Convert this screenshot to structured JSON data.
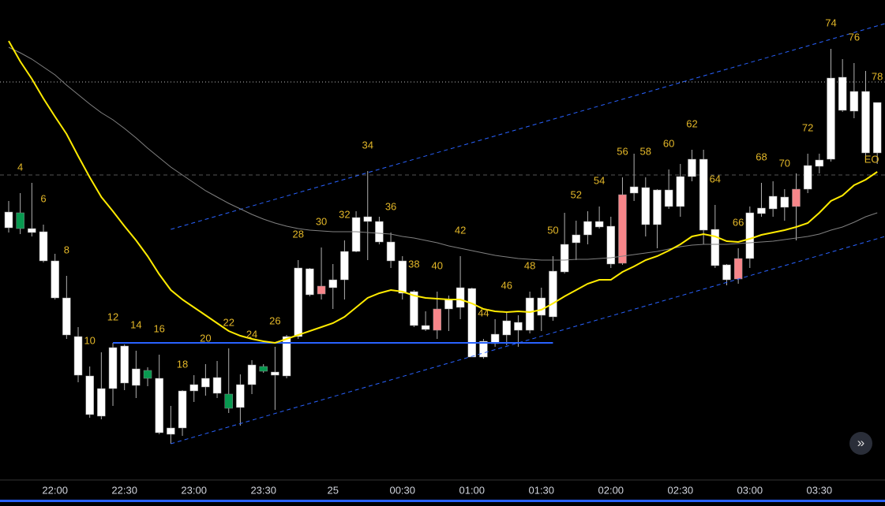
{
  "chart_data": {
    "type": "candlestick",
    "xlim": [
      -0.75,
      75.67
    ],
    "ylim": [
      0,
      600
    ],
    "categories": [
      null,
      null,
      null,
      null,
      "22:00",
      null,
      null,
      null,
      null,
      null,
      "22:30",
      null,
      null,
      null,
      null,
      null,
      "23:00",
      null,
      null,
      null,
      null,
      null,
      "23:30",
      null,
      null,
      null,
      null,
      null,
      "25",
      null,
      null,
      null,
      null,
      null,
      "00:30",
      null,
      null,
      null,
      null,
      null,
      "01:00",
      null,
      null,
      null,
      null,
      null,
      "01:30",
      null,
      null,
      null,
      null,
      null,
      "02:00",
      null,
      null,
      null,
      null,
      null,
      "02:30",
      null,
      null,
      null,
      null,
      null,
      "03:00",
      null,
      null,
      null,
      null,
      null,
      "03:30",
      null,
      null,
      null,
      null,
      null
    ],
    "open": [
      311,
      330,
      305,
      269,
      222,
      175,
      124,
      74,
      72,
      107,
      114,
      111,
      130,
      51,
      49,
      57,
      104,
      109,
      101,
      100,
      83,
      112,
      135,
      124,
      123,
      173,
      226,
      237,
      235,
      245,
      281,
      319,
      293,
      269,
      228,
      187,
      182,
      208,
      208,
      210,
      147,
      147,
      164,
      175,
      181,
      181,
      200,
      198,
      255,
      292,
      302,
      312,
      265,
      353,
      355,
      315,
      315,
      338,
      338,
      376,
      308,
      263,
      245,
      272,
      272,
      329,
      335,
      337,
      360,
      360,
      389,
      398,
      460,
      459,
      406,
      406
    ],
    "high": [
      345,
      355,
      368,
      315,
      278,
      250,
      185,
      135,
      153,
      165,
      163,
      155,
      134,
      150,
      85,
      105,
      124,
      138,
      142,
      158,
      125,
      143,
      138,
      160,
      175,
      270,
      260,
      286,
      265,
      295,
      332,
      383,
      325,
      305,
      275,
      232,
      205,
      230,
      225,
      275,
      235,
      170,
      195,
      205,
      200,
      230,
      235,
      275,
      330,
      320,
      332,
      338,
      325,
      375,
      405,
      375,
      360,
      385,
      392,
      410,
      410,
      340,
      265,
      285,
      338,
      368,
      370,
      360,
      380,
      405,
      405,
      538,
      525,
      520,
      510,
      470
    ],
    "low": [
      305,
      303,
      300,
      267,
      220,
      170,
      115,
      70,
      68,
      85,
      105,
      95,
      110,
      49,
      37,
      47,
      90,
      98,
      95,
      76,
      60,
      100,
      127,
      80,
      120,
      170,
      224,
      220,
      208,
      220,
      280,
      270,
      290,
      260,
      220,
      185,
      180,
      170,
      180,
      195,
      147,
      145,
      160,
      162,
      160,
      177,
      180,
      193,
      253,
      270,
      290,
      310,
      260,
      264,
      345,
      300,
      285,
      335,
      325,
      370,
      290,
      260,
      238,
      240,
      260,
      325,
      325,
      320,
      295,
      355,
      380,
      395,
      458,
      450,
      400,
      392
    ],
    "close": [
      331,
      310,
      310,
      306,
      269,
      222,
      173,
      123,
      107,
      159,
      161,
      132,
      120,
      120,
      57,
      104,
      112,
      120,
      121,
      82,
      112,
      137,
      129,
      128,
      173,
      260,
      259,
      227,
      245,
      281,
      324,
      325,
      319,
      293,
      269,
      230,
      187,
      181,
      220,
      235,
      234,
      167,
      176,
      193,
      191,
      222,
      222,
      256,
      290,
      302,
      319,
      319,
      313,
      266,
      363,
      362,
      359,
      359,
      376,
      398,
      398,
      309,
      264,
      246,
      330,
      336,
      351,
      350,
      338,
      390,
      397,
      501,
      502,
      484,
      484,
      470
    ],
    "colors": [
      "#ffffff",
      "#089950",
      "#ffffff",
      "#ffffff",
      "#ffffff",
      "#ffffff",
      "#ffffff",
      "#ffffff",
      "#ffffff",
      "#ffffff",
      "#ffffff",
      "#ffffff",
      "#089950",
      "#ffffff",
      "#ffffff",
      "#ffffff",
      "#ffffff",
      "#ffffff",
      "#ffffff",
      "#089950",
      "#ffffff",
      "#ffffff",
      "#089950",
      "#ffffff",
      "#ffffff",
      "#ffffff",
      "#ffffff",
      "#f7868a",
      "#ffffff",
      "#ffffff",
      "#ffffff",
      "#ffffff",
      "#ffffff",
      "#ffffff",
      "#ffffff",
      "#ffffff",
      "#ffffff",
      "#f7868a",
      "#ffffff",
      "#ffffff",
      "#ffffff",
      "#ffffff",
      "#ffffff",
      "#ffffff",
      "#ffffff",
      "#ffffff",
      "#ffffff",
      "#ffffff",
      "#ffffff",
      "#ffffff",
      "#ffffff",
      "#ffffff",
      "#ffffff",
      "#f7868a",
      "#ffffff",
      "#ffffff",
      "#ffffff",
      "#ffffff",
      "#ffffff",
      "#ffffff",
      "#ffffff",
      "#ffffff",
      "#ffffff",
      "#f7868a",
      "#ffffff",
      "#ffffff",
      "#ffffff",
      "#ffffff",
      "#f7868a",
      "#ffffff",
      "#ffffff",
      "#ffffff",
      "#ffffff",
      "#ffffff",
      "#ffffff",
      "#ffffff"
    ],
    "ma": [
      {
        "color": "#808080",
        "values": [
          540,
          533,
          525,
          515,
          505,
          492,
          480,
          468,
          457,
          448,
          437,
          425,
          412,
          400,
          388,
          378,
          368,
          358,
          350,
          342,
          335,
          328,
          322,
          317,
          313,
          310,
          308,
          307,
          306,
          306,
          306,
          305,
          304,
          303,
          300,
          298,
          295,
          292,
          288,
          285,
          282,
          279,
          276,
          274,
          272,
          271,
          270,
          270,
          270,
          271,
          271,
          272,
          273,
          275,
          277,
          279,
          281,
          284,
          287,
          289,
          290,
          290,
          290,
          291,
          292,
          293,
          294,
          296,
          298,
          300,
          303,
          308,
          312,
          318,
          325,
          330
        ]
      },
      {
        "color": "#ffeb00",
        "values": [
          548,
          522,
          500,
          475,
          452,
          430,
          402,
          375,
          350,
          332,
          313,
          295,
          275,
          252,
          232,
          220,
          210,
          200,
          190,
          180,
          174,
          170,
          167,
          165,
          170,
          175,
          180,
          185,
          190,
          198,
          210,
          222,
          228,
          232,
          230,
          225,
          222,
          221,
          220,
          220,
          215,
          208,
          205,
          204,
          205,
          204,
          207,
          215,
          224,
          232,
          240,
          245,
          245,
          255,
          262,
          270,
          275,
          282,
          290,
          300,
          303,
          300,
          294,
          293,
          297,
          302,
          305,
          308,
          312,
          317,
          330,
          345,
          352,
          365,
          372,
          382
        ]
      }
    ],
    "levels": [
      {
        "value": 496,
        "color": "#bbbbbb",
        "dash": "1 3"
      },
      {
        "value": 378,
        "color": "#555555",
        "dash": "5 4"
      }
    ],
    "lines": [
      {
        "x": [
          14,
          75.67
        ],
        "y": [
          309,
          570
        ],
        "color": "#2962ff",
        "dash": "5 4"
      },
      {
        "x": [
          14,
          75.67
        ],
        "y": [
          37,
          300
        ],
        "color": "#2962ff",
        "dash": "5 4"
      },
      {
        "x": [
          9,
          47
        ],
        "y": [
          165,
          165
        ],
        "color": "#2962ff",
        "dash": "none"
      }
    ],
    "annotations": [
      "4",
      "6",
      "8",
      "10",
      "12",
      "14",
      "16",
      "18",
      "20",
      "22",
      "24",
      "26",
      "28",
      "30",
      "32",
      "34",
      "36",
      "38",
      "40",
      "42",
      "44",
      "46",
      "48",
      "50",
      "52",
      "54",
      "56",
      "58",
      "60",
      "62",
      "64",
      "66",
      "68",
      "70",
      "72",
      "74",
      "76",
      "78"
    ],
    "end_label": "EO"
  }
}
